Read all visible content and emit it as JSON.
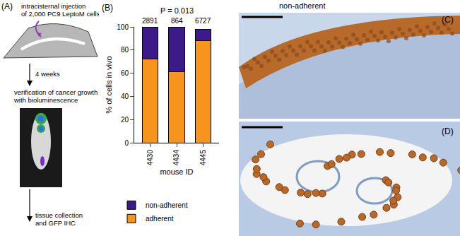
{
  "panels": {
    "A": {
      "label": "(A)",
      "injection": [
        "intracisternal injection",
        "of 2,000 PC9 LeptoM cells"
      ],
      "interval": "4 weeks",
      "verification": [
        "verification of cancer growth",
        "with bioluminescence"
      ],
      "collection": [
        "tissue collection",
        "and GFP IHC"
      ]
    },
    "CD_title": "non-adherent",
    "C": {
      "label": "(C)"
    },
    "D": {
      "label": "(D)"
    }
  },
  "chart_data": {
    "type": "bar",
    "label": "(B)",
    "stacked": true,
    "categories": [
      "4430",
      "4434",
      "4445"
    ],
    "series": [
      {
        "name": "adherent",
        "color": "#F7941D",
        "values": [
          72,
          61,
          88
        ]
      },
      {
        "name": "non-adherent",
        "color": "#3D1A8A",
        "values": [
          28,
          39,
          10
        ]
      }
    ],
    "cell_counts": [
      2891,
      864,
      6727
    ],
    "p_value_text": "P = 0.013",
    "y_label": "% of cells in vivo",
    "x_label": "mouse ID",
    "ylim": [
      0,
      100
    ],
    "yticks": [
      0,
      20,
      40,
      60,
      80,
      100
    ],
    "grid": false,
    "legend": "bottom"
  }
}
